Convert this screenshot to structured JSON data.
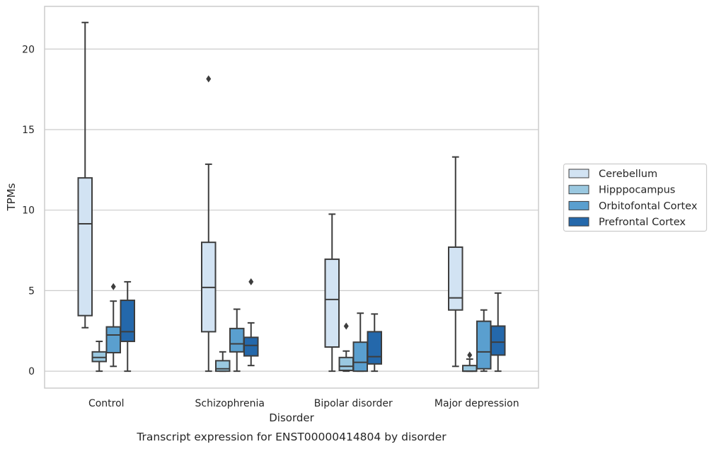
{
  "chart_data": {
    "type": "box",
    "caption": "Transcript expression for ENST00000414804 by disorder",
    "xlabel": "Disorder",
    "ylabel": "TPMs",
    "ylim": [
      -1.05,
      22.65
    ],
    "yticks": [
      0,
      5,
      10,
      15,
      20
    ],
    "grid": true,
    "legend_position": "right",
    "categories": [
      "Control",
      "Schizophrenia",
      "Bipolar disorder",
      "Major depression"
    ],
    "series": [
      {
        "name": "Cerebellum",
        "color": "#d2e3f3",
        "boxes": [
          {
            "whislo": 2.7,
            "q1": 3.45,
            "med": 9.15,
            "q3": 12.0,
            "whishi": 21.65,
            "fliers": []
          },
          {
            "whislo": 0.0,
            "q1": 2.45,
            "med": 5.2,
            "q3": 8.0,
            "whishi": 12.85,
            "fliers": [
              18.15
            ]
          },
          {
            "whislo": 0.0,
            "q1": 1.5,
            "med": 4.45,
            "q3": 6.95,
            "whishi": 9.75,
            "fliers": []
          },
          {
            "whislo": 0.3,
            "q1": 3.8,
            "med": 4.55,
            "q3": 7.7,
            "whishi": 13.3,
            "fliers": []
          }
        ]
      },
      {
        "name": "Hipppocampus",
        "color": "#9ac8e0",
        "boxes": [
          {
            "whislo": 0.0,
            "q1": 0.6,
            "med": 0.85,
            "q3": 1.2,
            "whishi": 1.85,
            "fliers": []
          },
          {
            "whislo": 0.0,
            "q1": 0.0,
            "med": 0.15,
            "q3": 0.65,
            "whishi": 1.2,
            "fliers": []
          },
          {
            "whislo": 0.0,
            "q1": 0.05,
            "med": 0.3,
            "q3": 0.85,
            "whishi": 1.25,
            "fliers": [
              2.8
            ]
          },
          {
            "whislo": 0.0,
            "q1": 0.0,
            "med": 0.0,
            "q3": 0.35,
            "whishi": 0.75,
            "fliers": [
              1.0
            ]
          }
        ]
      },
      {
        "name": "Orbitofontal Cortex",
        "color": "#5a9fcf",
        "boxes": [
          {
            "whislo": 0.3,
            "q1": 1.15,
            "med": 2.25,
            "q3": 2.75,
            "whishi": 4.35,
            "fliers": [
              5.25
            ]
          },
          {
            "whislo": 0.0,
            "q1": 1.2,
            "med": 1.7,
            "q3": 2.65,
            "whishi": 3.85,
            "fliers": []
          },
          {
            "whislo": 0.0,
            "q1": 0.0,
            "med": 0.55,
            "q3": 1.8,
            "whishi": 3.6,
            "fliers": []
          },
          {
            "whislo": 0.0,
            "q1": 0.15,
            "med": 1.2,
            "q3": 3.1,
            "whishi": 3.8,
            "fliers": []
          }
        ]
      },
      {
        "name": "Prefrontal Cortex",
        "color": "#2468ab",
        "boxes": [
          {
            "whislo": 0.0,
            "q1": 1.85,
            "med": 2.45,
            "q3": 4.4,
            "whishi": 5.55,
            "fliers": []
          },
          {
            "whislo": 0.35,
            "q1": 0.95,
            "med": 1.6,
            "q3": 2.1,
            "whishi": 3.0,
            "fliers": [
              5.55
            ]
          },
          {
            "whislo": 0.0,
            "q1": 0.45,
            "med": 0.9,
            "q3": 2.45,
            "whishi": 3.55,
            "fliers": []
          },
          {
            "whislo": 0.0,
            "q1": 1.0,
            "med": 1.8,
            "q3": 2.8,
            "whishi": 4.85,
            "fliers": []
          }
        ]
      }
    ],
    "colors": {
      "grid": "#cccccc",
      "frame": "#cccccc",
      "line": "#3d3d3d",
      "legend_border": "#cccccc"
    }
  }
}
